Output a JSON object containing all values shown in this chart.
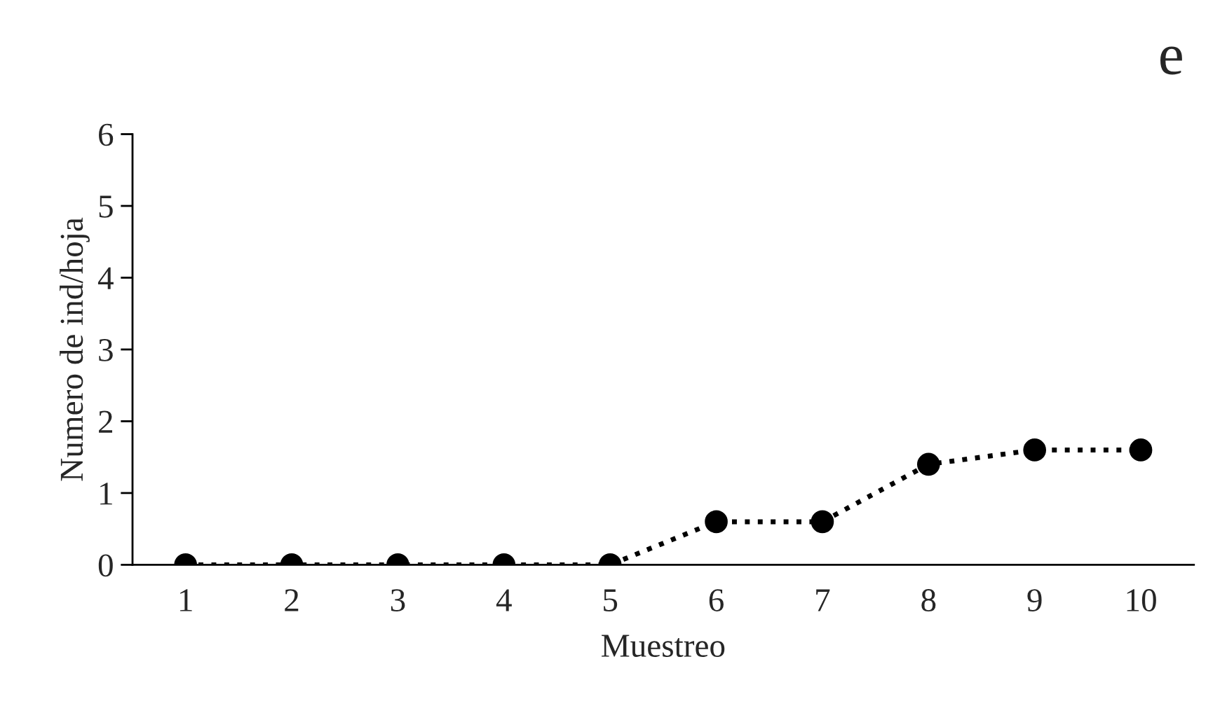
{
  "chart_data": {
    "type": "line",
    "title": "e",
    "xlabel": "Muestreo",
    "ylabel": "Numero de ind/hoja",
    "categories": [
      "1",
      "2",
      "3",
      "4",
      "5",
      "6",
      "7",
      "8",
      "9",
      "10"
    ],
    "series": [
      {
        "color": "#000000",
        "values": [
          0,
          0,
          0,
          0,
          0,
          0.6,
          0.6,
          1.4,
          1.6,
          1.6
        ]
      }
    ],
    "ylim": [
      0,
      6
    ],
    "yticks": [
      0,
      1,
      2,
      3,
      4,
      5,
      6
    ],
    "grid": false,
    "legend": false,
    "marker": "circle",
    "line_style": "dotted"
  }
}
